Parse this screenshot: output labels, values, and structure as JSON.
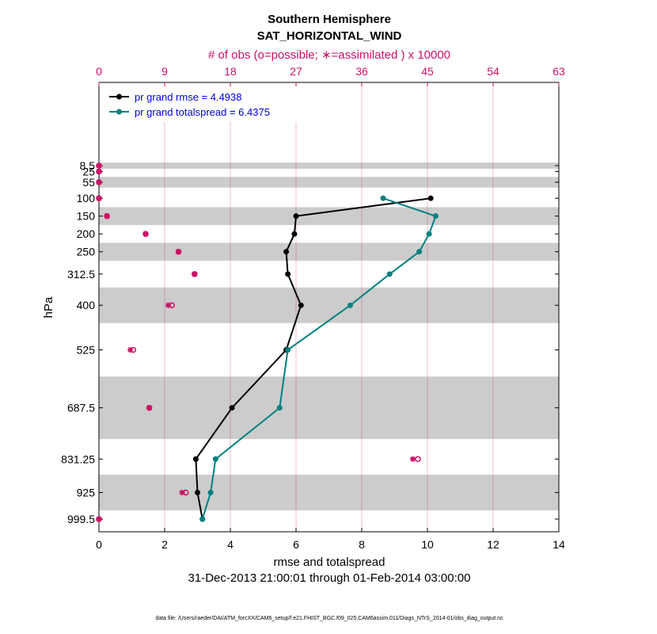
{
  "chart_data": {
    "type": "line",
    "title": "Southern Hemisphere",
    "subtitle": "SAT_HORIZONTAL_WIND",
    "top_axis_label": "# of obs (o=possible; ∗=assimilated ) x 10000",
    "xlabel": "rmse and totalspread",
    "ylabel": "hPa",
    "date_range": "31-Dec-2013 21:00:01 through 01-Feb-2014 03:00:00",
    "footnote": "data file: /Users/raeder/DAI/ATM_forcXX/CAM6_setup/f.e21.FHIST_BGC.f09_025.CAM6assim.011/Diags_NTrS_2014-01/obs_diag_output.nc",
    "xlim": [
      0,
      14
    ],
    "xticks": [
      "0",
      "2",
      "4",
      "6",
      "8",
      "10",
      "12",
      "14"
    ],
    "top_xlim": [
      0,
      63
    ],
    "top_xticks": [
      "0",
      "9",
      "18",
      "27",
      "36",
      "45",
      "54",
      "63"
    ],
    "levels": [
      8.5,
      25,
      55,
      100,
      150,
      200,
      250,
      312.5,
      400,
      525,
      687.5,
      831.25,
      925,
      999.5
    ],
    "level_labels": [
      "8.5",
      "25",
      "55",
      "100",
      "150",
      "200",
      "250",
      "312.5",
      "400",
      "525",
      "687.5",
      "831.25",
      "925",
      "999.5"
    ],
    "shaded_bands": [
      [
        0,
        17
      ],
      [
        40,
        70
      ],
      [
        125,
        175
      ],
      [
        225,
        275
      ],
      [
        350,
        450
      ],
      [
        600,
        775
      ],
      [
        875,
        975
      ]
    ],
    "series": [
      {
        "name": "pr grand rmse = 4.4938",
        "color": "#000000",
        "levels": [
          100,
          150,
          200,
          250,
          312.5,
          400,
          525,
          687.5,
          831.25,
          925,
          999.5
        ],
        "values": [
          10.1,
          6.0,
          5.95,
          5.7,
          5.75,
          6.15,
          5.7,
          4.05,
          2.95,
          3.0,
          3.15
        ]
      },
      {
        "name": "pr grand totalspread = 6.4375",
        "color": "#008080",
        "levels": [
          100,
          150,
          200,
          250,
          312.5,
          400,
          525,
          687.5,
          831.25,
          925,
          999.5
        ],
        "values": [
          8.65,
          10.25,
          10.05,
          9.75,
          8.85,
          7.65,
          5.75,
          5.5,
          3.55,
          3.4,
          3.15
        ]
      }
    ],
    "obs_counts": {
      "color": "#cc1166",
      "levels": [
        8.5,
        25,
        55,
        100,
        150,
        200,
        250,
        312.5,
        400,
        525,
        687.5,
        831.25,
        925,
        999.5
      ],
      "possible": [
        0,
        0,
        0,
        0,
        1.1,
        6.4,
        10.9,
        13.1,
        10.0,
        4.7,
        6.9,
        43.7,
        11.9,
        0
      ],
      "assimilated": [
        0,
        0,
        0,
        0,
        1.1,
        6.4,
        10.9,
        13.1,
        9.5,
        4.3,
        6.9,
        43.0,
        11.4,
        0
      ]
    }
  }
}
